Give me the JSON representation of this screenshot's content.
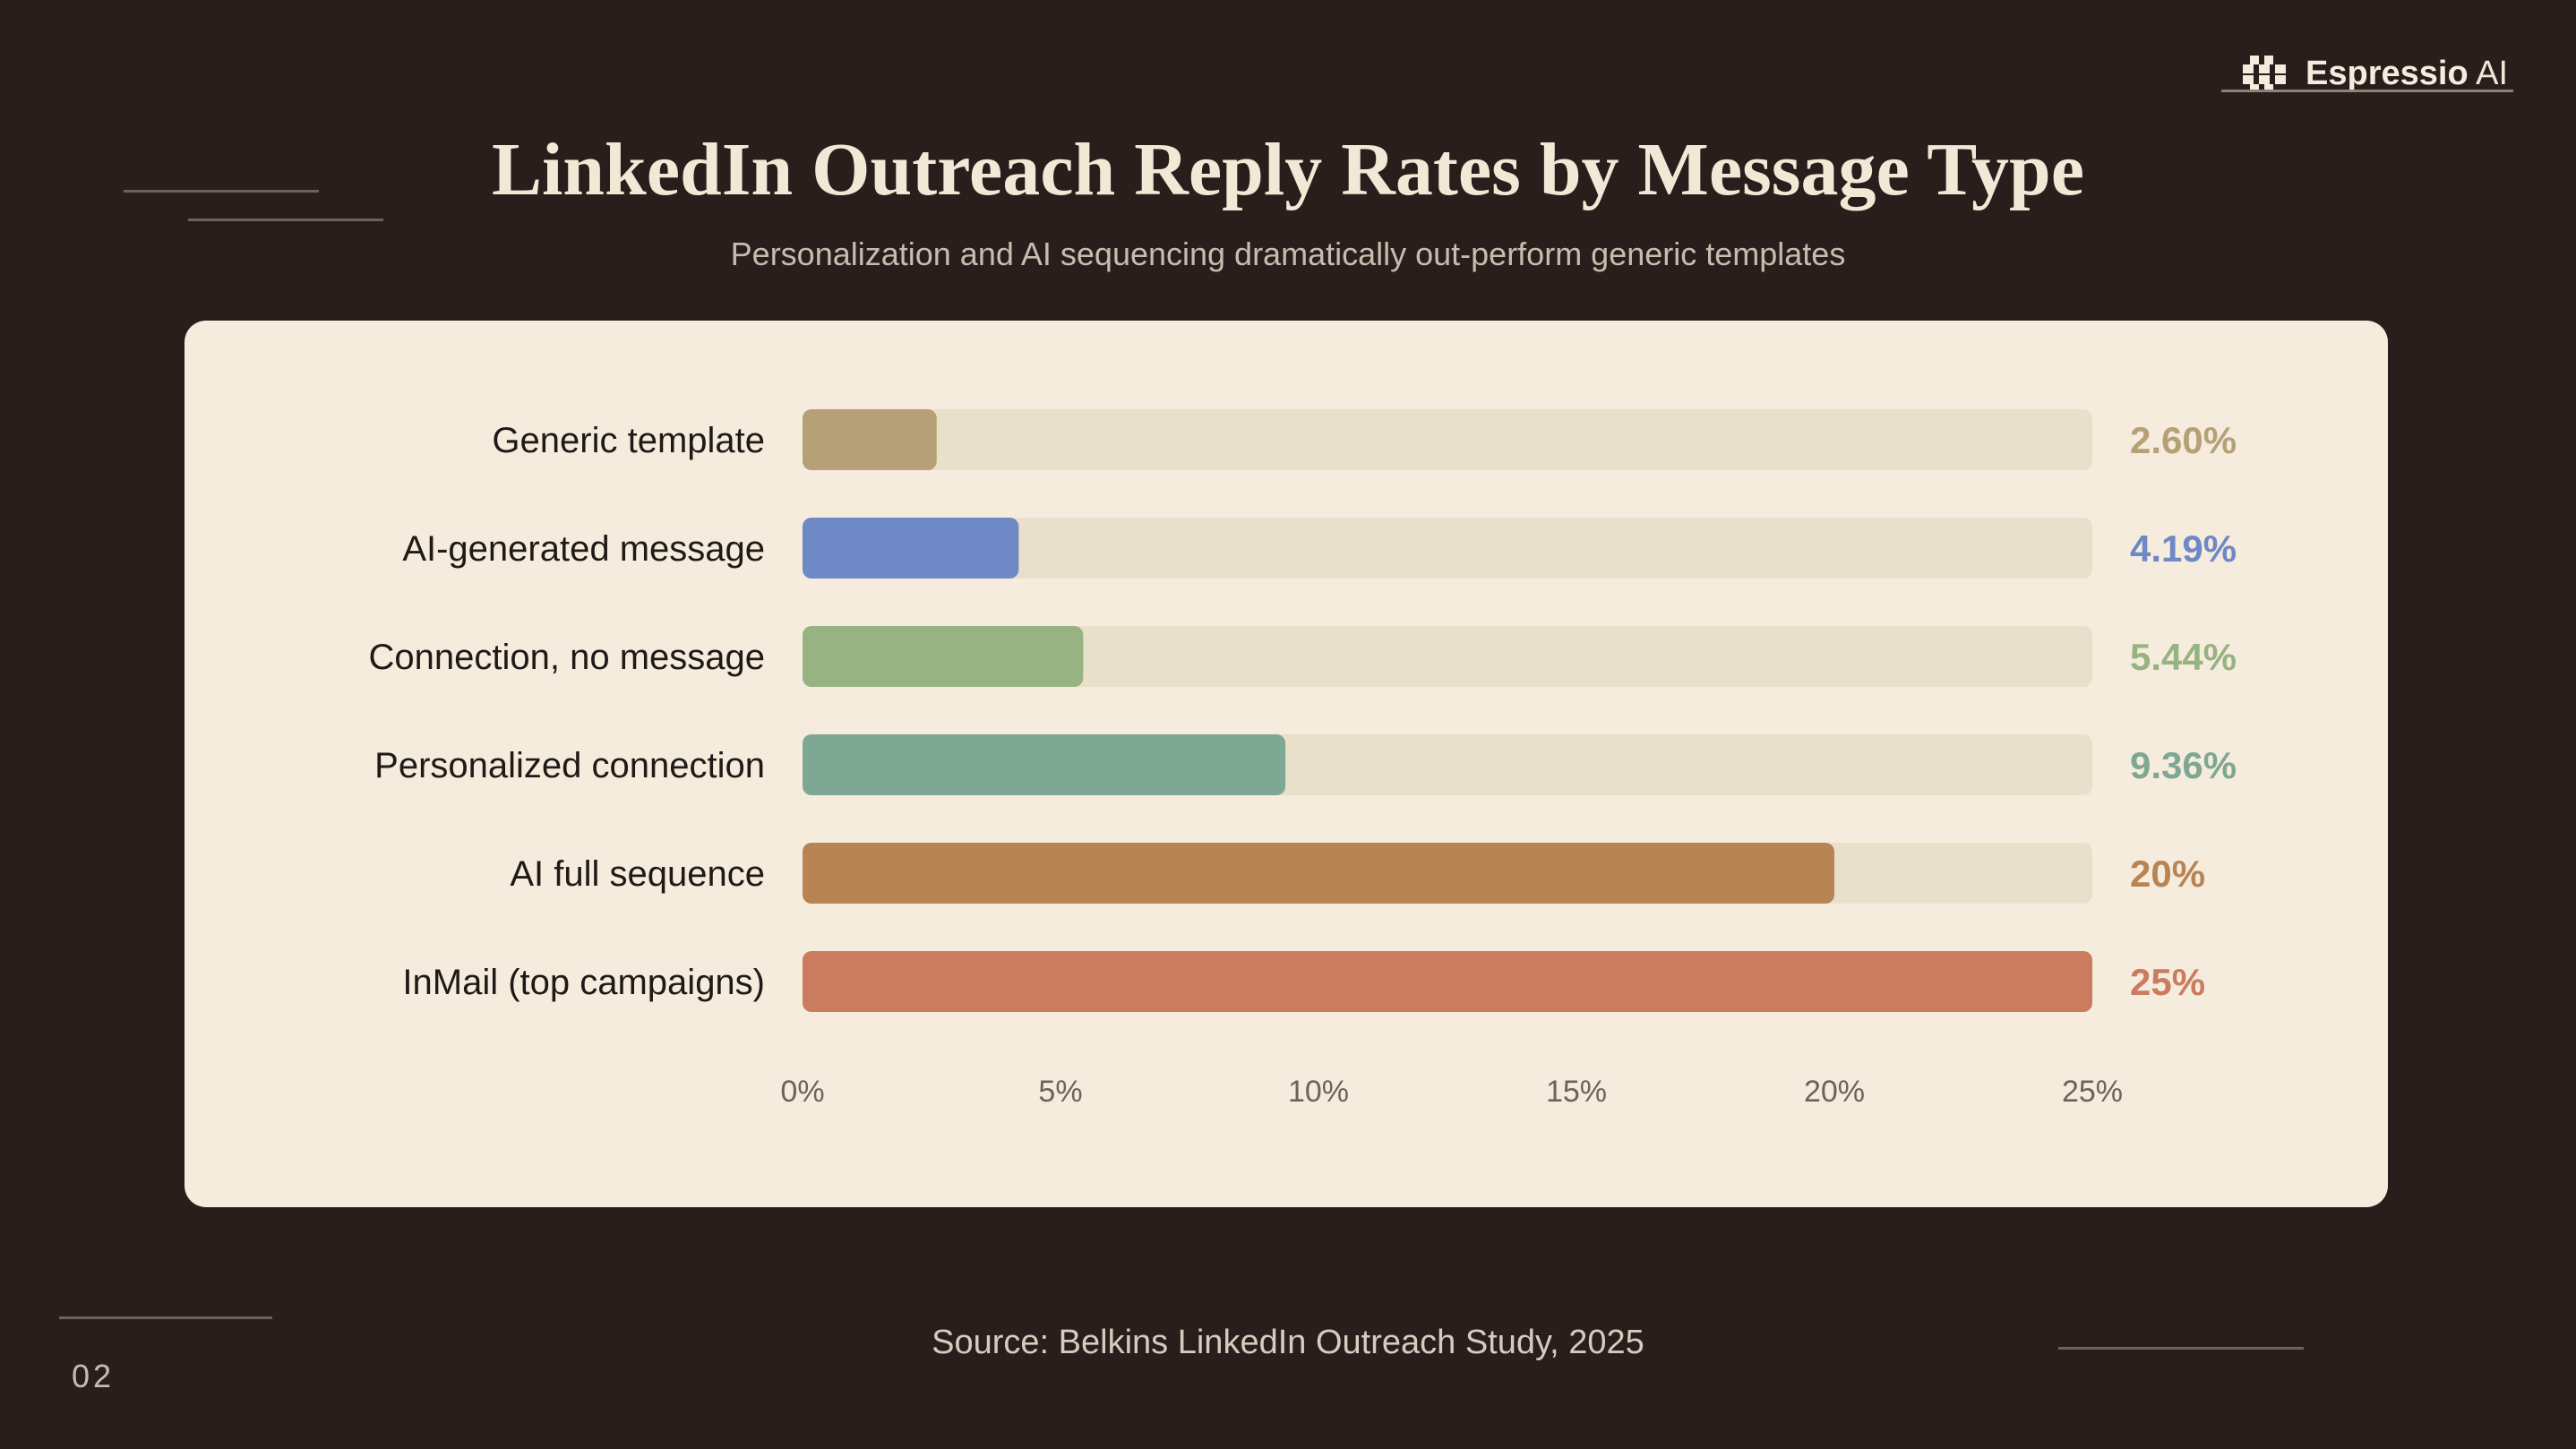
{
  "brand": {
    "name_bold": "Espressio",
    "name_light": "AI",
    "icon": "espressio-logo-icon"
  },
  "page_number": "02",
  "source": "Source: Belkins LinkedIn Outreach Study, 2025",
  "chart_data": {
    "type": "bar",
    "orientation": "horizontal",
    "title": "LinkedIn Outreach Reply Rates by Message Type",
    "subtitle": "Personalization and AI sequencing dramatically out-perform generic templates",
    "categories": [
      "Generic template",
      "AI-generated message",
      "Connection, no message",
      "Personalized connection",
      "AI full sequence",
      "InMail (top campaigns)"
    ],
    "values": [
      2.6,
      4.19,
      5.44,
      9.36,
      20,
      25
    ],
    "value_labels": [
      "2.60%",
      "4.19%",
      "5.44%",
      "9.36%",
      "20%",
      "25%"
    ],
    "colors": [
      "#b5a077",
      "#6f88c6",
      "#97b382",
      "#7ea893",
      "#b88454",
      "#cb7b5e"
    ],
    "track_color": "#e9e0cb",
    "xlim": [
      0,
      25
    ],
    "xticks": [
      0,
      5,
      10,
      15,
      20,
      25
    ],
    "xtick_labels": [
      "0%",
      "5%",
      "10%",
      "15%",
      "20%",
      "25%"
    ],
    "grid": false,
    "legend": "none"
  }
}
